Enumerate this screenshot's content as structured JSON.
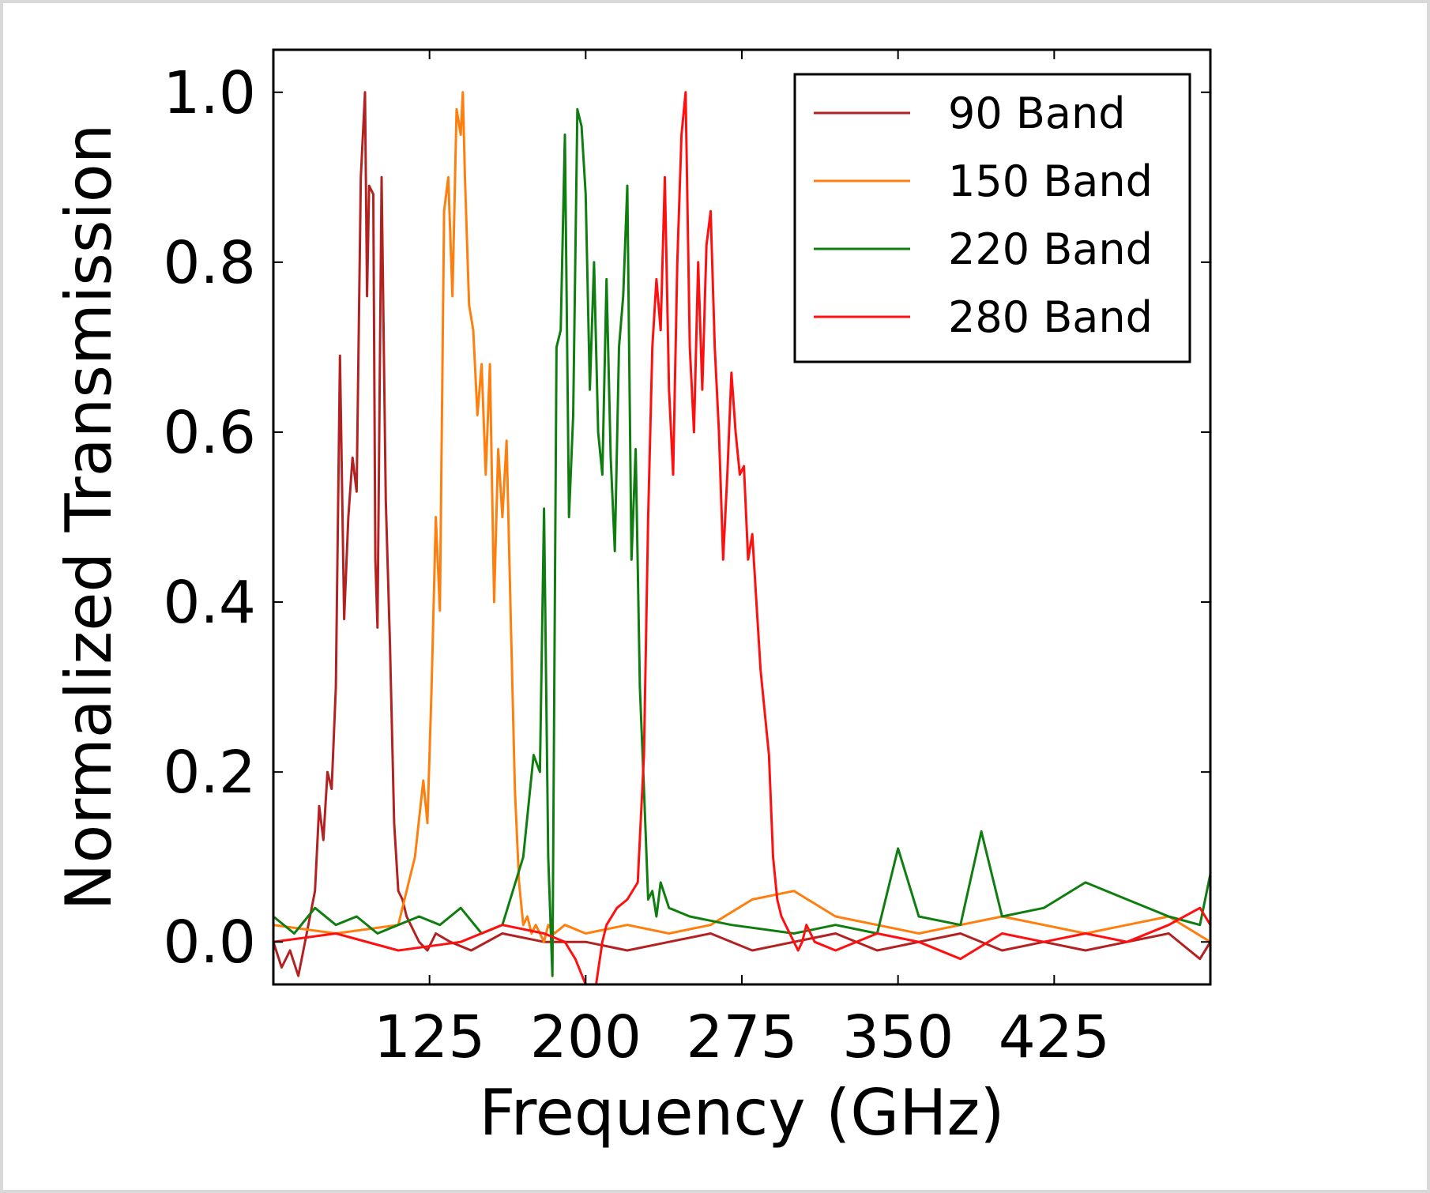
{
  "chart_data": {
    "type": "line",
    "title": "",
    "xlabel": "Frequency (GHz)",
    "ylabel": "Normalized Transmission",
    "xlim": [
      50,
      500
    ],
    "ylim": [
      -0.05,
      1.05
    ],
    "xticks": [
      125,
      200,
      275,
      350,
      425
    ],
    "xtick_labels": [
      "125",
      "200",
      "275",
      "350",
      "425"
    ],
    "yticks": [
      0.0,
      0.2,
      0.4,
      0.6,
      0.8,
      1.0
    ],
    "ytick_labels": [
      "0.0",
      "0.2",
      "0.4",
      "0.6",
      "0.8",
      "1.0"
    ],
    "grid": false,
    "legend_position": "top-right",
    "series": [
      {
        "name": "90 Band",
        "color": "#b22222",
        "x": [
          50,
          54,
          58,
          62,
          66,
          70,
          72,
          74,
          76,
          78,
          80,
          82,
          84,
          86,
          88,
          90,
          92,
          94,
          95,
          96,
          98,
          99,
          100,
          102,
          104,
          106,
          108,
          110,
          112,
          114,
          116,
          118,
          120,
          124,
          128,
          135,
          145,
          160,
          180,
          200,
          220,
          240,
          260,
          280,
          300,
          320,
          340,
          360,
          380,
          400,
          420,
          440,
          460,
          480,
          495,
          500
        ],
        "y": [
          0.0,
          -0.03,
          -0.01,
          -0.04,
          0.01,
          0.06,
          0.16,
          0.12,
          0.2,
          0.18,
          0.3,
          0.69,
          0.38,
          0.5,
          0.57,
          0.53,
          0.9,
          1.0,
          0.76,
          0.89,
          0.88,
          0.45,
          0.37,
          0.9,
          0.52,
          0.35,
          0.14,
          0.06,
          0.05,
          0.03,
          0.02,
          0.01,
          0.0,
          -0.01,
          0.01,
          0.0,
          -0.01,
          0.01,
          0.0,
          0.0,
          -0.01,
          0.0,
          0.01,
          -0.01,
          0.0,
          0.01,
          -0.01,
          0.0,
          0.01,
          -0.01,
          0.0,
          -0.01,
          0.0,
          0.01,
          -0.02,
          0.0
        ]
      },
      {
        "name": "150 Band",
        "color": "#ff7f0e",
        "x": [
          50,
          80,
          110,
          118,
          122,
          124,
          126,
          128,
          130,
          132,
          134,
          136,
          138,
          140,
          141,
          142,
          144,
          146,
          148,
          150,
          152,
          154,
          156,
          158,
          160,
          162,
          164,
          166,
          168,
          170,
          172,
          174,
          176,
          178,
          180,
          182,
          185,
          190,
          200,
          220,
          240,
          260,
          280,
          300,
          320,
          340,
          360,
          380,
          400,
          420,
          440,
          460,
          480,
          500
        ],
        "y": [
          0.02,
          0.01,
          0.02,
          0.1,
          0.19,
          0.14,
          0.3,
          0.5,
          0.39,
          0.86,
          0.9,
          0.76,
          0.98,
          0.95,
          1.0,
          0.9,
          0.75,
          0.72,
          0.62,
          0.68,
          0.55,
          0.68,
          0.4,
          0.58,
          0.5,
          0.59,
          0.38,
          0.18,
          0.07,
          0.02,
          0.03,
          0.01,
          0.02,
          0.01,
          0.0,
          0.02,
          0.01,
          0.02,
          0.01,
          0.02,
          0.01,
          0.02,
          0.05,
          0.06,
          0.03,
          0.02,
          0.01,
          0.02,
          0.03,
          0.02,
          0.01,
          0.02,
          0.03,
          0.0
        ]
      },
      {
        "name": "220 Band",
        "color": "#107d10",
        "x": [
          50,
          60,
          70,
          80,
          90,
          100,
          110,
          120,
          130,
          140,
          150,
          160,
          170,
          175,
          178,
          180,
          182,
          184,
          186,
          188,
          190,
          192,
          194,
          196,
          198,
          200,
          202,
          204,
          206,
          208,
          210,
          212,
          214,
          216,
          218,
          220,
          222,
          224,
          226,
          228,
          230,
          232,
          234,
          236,
          240,
          250,
          270,
          300,
          320,
          340,
          350,
          360,
          380,
          390,
          400,
          420,
          440,
          460,
          480,
          495,
          500
        ],
        "y": [
          0.03,
          0.01,
          0.04,
          0.02,
          0.03,
          0.01,
          0.02,
          0.03,
          0.02,
          0.04,
          0.01,
          0.02,
          0.1,
          0.22,
          0.2,
          0.51,
          0.1,
          -0.04,
          0.7,
          0.72,
          0.95,
          0.5,
          0.62,
          0.98,
          0.96,
          0.88,
          0.65,
          0.8,
          0.6,
          0.55,
          0.78,
          0.57,
          0.46,
          0.7,
          0.76,
          0.89,
          0.45,
          0.58,
          0.3,
          0.18,
          0.05,
          0.06,
          0.03,
          0.07,
          0.04,
          0.03,
          0.02,
          0.01,
          0.02,
          0.01,
          0.11,
          0.03,
          0.02,
          0.13,
          0.03,
          0.04,
          0.07,
          0.05,
          0.03,
          0.02,
          0.08
        ]
      },
      {
        "name": "280 Band",
        "color": "#ff1010",
        "x": [
          50,
          80,
          110,
          140,
          160,
          180,
          190,
          195,
          200,
          205,
          208,
          210,
          215,
          220,
          225,
          228,
          230,
          232,
          234,
          236,
          238,
          240,
          242,
          244,
          246,
          248,
          250,
          252,
          254,
          256,
          258,
          260,
          262,
          264,
          266,
          268,
          270,
          272,
          274,
          276,
          278,
          280,
          282,
          284,
          286,
          288,
          290,
          292,
          294,
          296,
          298,
          300,
          302,
          304,
          306,
          310,
          320,
          340,
          360,
          380,
          400,
          420,
          440,
          460,
          480,
          495,
          500
        ],
        "y": [
          0.0,
          0.01,
          -0.01,
          0.0,
          0.02,
          0.01,
          0.0,
          -0.02,
          -0.05,
          -0.05,
          0.0,
          0.02,
          0.04,
          0.05,
          0.07,
          0.22,
          0.5,
          0.7,
          0.78,
          0.72,
          0.9,
          0.65,
          0.55,
          0.8,
          0.95,
          1.0,
          0.7,
          0.6,
          0.8,
          0.65,
          0.82,
          0.86,
          0.7,
          0.6,
          0.45,
          0.55,
          0.67,
          0.6,
          0.55,
          0.56,
          0.45,
          0.48,
          0.4,
          0.32,
          0.27,
          0.22,
          0.1,
          0.05,
          0.03,
          0.02,
          0.01,
          0.0,
          -0.01,
          0.0,
          0.02,
          0.0,
          -0.01,
          0.01,
          0.0,
          -0.02,
          0.01,
          0.0,
          0.01,
          0.0,
          0.02,
          0.04,
          0.02
        ]
      }
    ]
  }
}
